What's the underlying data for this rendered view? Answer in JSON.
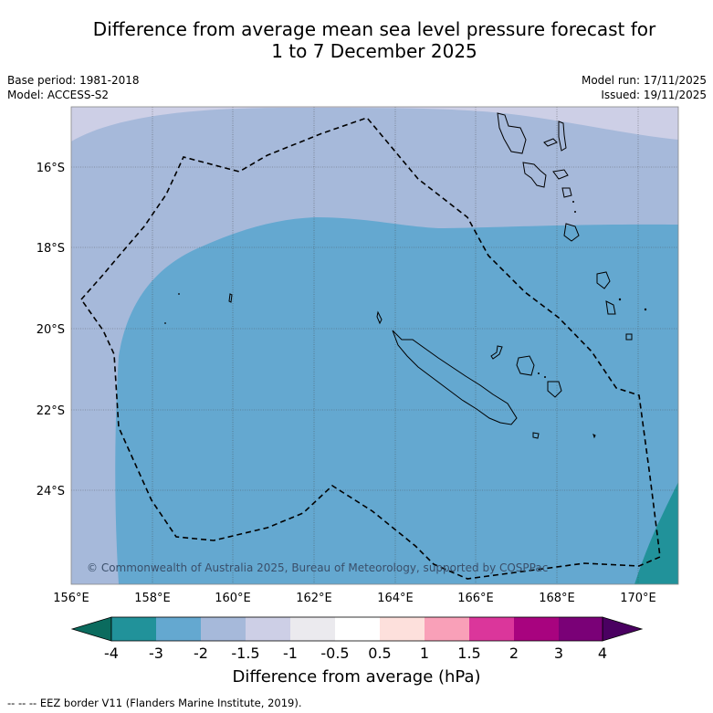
{
  "title": {
    "line1": "Difference from average mean sea level pressure forecast for",
    "line2": "1 to 7 December 2025"
  },
  "meta": {
    "base_period": "Base period: 1981-2018",
    "model": "Model: ACCESS-S2",
    "model_run": "Model run: 17/11/2025",
    "issued": "Issued: 19/11/2025"
  },
  "axes": {
    "lat_labels": [
      "16°S",
      "18°S",
      "20°S",
      "22°S",
      "24°S"
    ],
    "lon_labels": [
      "156°E",
      "158°E",
      "160°E",
      "162°E",
      "164°E",
      "166°E",
      "168°E",
      "170°E"
    ]
  },
  "copyright": "© Commonwealth of Australia 2025, Bureau of Meteorology, supported by COSPPac",
  "colorbar": {
    "title": "Difference from average (hPa)",
    "ticks": [
      "-4",
      "-3",
      "-2",
      "-1.5",
      "-1",
      "-0.5",
      "0.5",
      "1",
      "1.5",
      "2",
      "3",
      "4"
    ],
    "colors": {
      "under": "#0b6b5e",
      "bins": [
        "#21929a",
        "#64a8d0",
        "#a6b9da",
        "#cdcfe6",
        "#ebeaee",
        "#ffffff",
        "#fde0dc",
        "#f9a0b8",
        "#db369b",
        "#a8037f",
        "#7a0177"
      ],
      "over": "#4a0061"
    }
  },
  "map_colors": {
    "light_band": "#cdcfe6",
    "mid_band": "#a6b9da",
    "main_field": "#64a8d0",
    "deep_field": "#21929a"
  },
  "legend": "--  --  -- EEZ border V11 (Flanders Marine Institute, 2019)."
}
